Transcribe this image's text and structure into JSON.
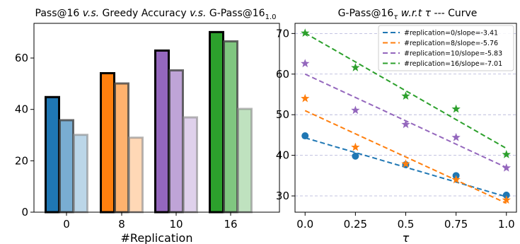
{
  "chart_data": [
    {
      "type": "bar",
      "title": "Pass@16 v.s. Greedy Accuracy v.s. G-Pass@16",
      "title_parts": {
        "p1": "Pass@16 ",
        "vs1": "v.s.",
        "p2": " Greedy Accuracy ",
        "vs2": "v.s.",
        "p3": " G-Pass@16",
        "sub": "1.0"
      },
      "xlabel": "#Replication",
      "ylabel": "",
      "ylim": [
        0,
        73.5
      ],
      "yticks": [
        0,
        20,
        40,
        60
      ],
      "categories": [
        "0",
        "8",
        "10",
        "16"
      ],
      "series": [
        {
          "values": [
            44.8,
            54.1,
            62.9,
            70.1
          ]
        },
        {
          "values": [
            35.8,
            50.1,
            55.2,
            66.5
          ]
        },
        {
          "values": [
            30.1,
            29.0,
            36.9,
            40.2
          ]
        }
      ],
      "colors": [
        "#1f77b4",
        "#ff7f0e",
        "#9467bd",
        "#2ca02c"
      ],
      "alphas": [
        1.0,
        0.6,
        0.3
      ],
      "edge_colors": [
        "#000000",
        "#444444",
        "#888888"
      ],
      "edge_alphas": [
        1.0,
        0.8,
        0.6
      ]
    },
    {
      "type": "scatter",
      "title": "G-Pass@16τ w.r.t τ --- Curve",
      "title_parts": {
        "p1": "G-Pass@16",
        "sub": "τ",
        "wrt": " w.r.t τ",
        "p3": " --- Curve"
      },
      "xlabel": "τ",
      "ylabel": "",
      "xlim": [
        -0.05,
        1.05
      ],
      "ylim": [
        26,
        72.5
      ],
      "xticks": [
        0.0,
        0.25,
        0.5,
        0.75,
        1.0
      ],
      "xtick_labels": [
        "0.0",
        "0.25",
        "0.5",
        "0.75",
        "1.0"
      ],
      "yticks": [
        30,
        40,
        50,
        60,
        70
      ],
      "grid": "horizontal dashed",
      "legend": "top-right",
      "x": [
        0.0,
        0.25,
        0.5,
        0.75,
        1.0
      ],
      "series": [
        {
          "name": "#replication=0/slope=-3.41",
          "color": "#1f77b4",
          "marker": "circle",
          "values": [
            44.8,
            39.8,
            37.7,
            35.0,
            30.2
          ],
          "fit": [
            44.3,
            29.8
          ]
        },
        {
          "name": "#replication=8/slope=-5.76",
          "color": "#ff7f0e",
          "marker": "star",
          "values": [
            54.0,
            42.0,
            37.9,
            34.0,
            29.0
          ],
          "fit": [
            51.0,
            28.2
          ]
        },
        {
          "name": "#replication=10/slope=-5.83",
          "color": "#9467bd",
          "marker": "star",
          "values": [
            62.6,
            51.1,
            47.6,
            44.4,
            36.9
          ],
          "fit": [
            60.0,
            37.0
          ]
        },
        {
          "name": "#replication=16/slope=-7.01",
          "color": "#2ca02c",
          "marker": "star",
          "values": [
            70.1,
            61.6,
            54.6,
            51.4,
            40.2
          ],
          "fit": [
            70.1,
            41.7
          ]
        }
      ]
    }
  ]
}
